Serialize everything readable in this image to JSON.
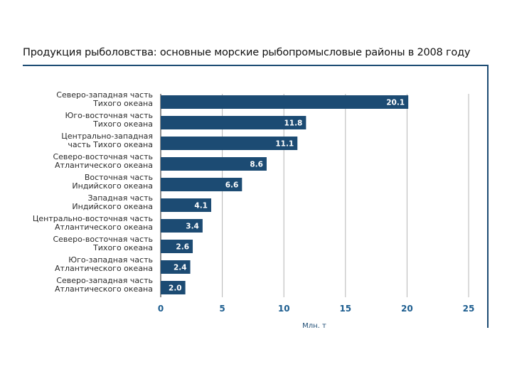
{
  "chart_data": {
    "type": "bar",
    "orientation": "horizontal",
    "title": "Продукция рыболовства: основные морские рыбопромысловые районы в 2008 году",
    "xlabel": "Млн. т",
    "ylabel": "",
    "xlim": [
      0,
      25
    ],
    "ticks": [
      "0",
      "5",
      "10",
      "15",
      "20",
      "25"
    ],
    "grid": true,
    "categories": [
      [
        "Северо-западная часть",
        "Тихого океана"
      ],
      [
        "Юго-восточная часть",
        "Тихого океана"
      ],
      [
        "Центрально-западная",
        "часть Тихого океана"
      ],
      [
        "Северо-восточная часть",
        "Атлантического океана"
      ],
      [
        "Восточная часть",
        "Индийского океана"
      ],
      [
        "Западная часть",
        "Индийского океана"
      ],
      [
        "Центрально-восточная часть",
        "Атлантического океана"
      ],
      [
        "Северо-восточная часть",
        "Тихого океана"
      ],
      [
        "Юго-западная часть",
        "Атлантического океана"
      ],
      [
        "Северо-западная часть",
        "Атлантического океана"
      ]
    ],
    "values": [
      20.1,
      11.8,
      11.1,
      8.6,
      6.6,
      4.1,
      3.4,
      2.6,
      2.4,
      2.0
    ],
    "value_labels": [
      "20.1",
      "11.8",
      "11.1",
      "8.6",
      "6.6",
      "4.1",
      "3.4",
      "2.6",
      "2.4",
      "2.0"
    ],
    "bar_color": "#1c4b73",
    "tick_color": "#1c5d8f"
  }
}
